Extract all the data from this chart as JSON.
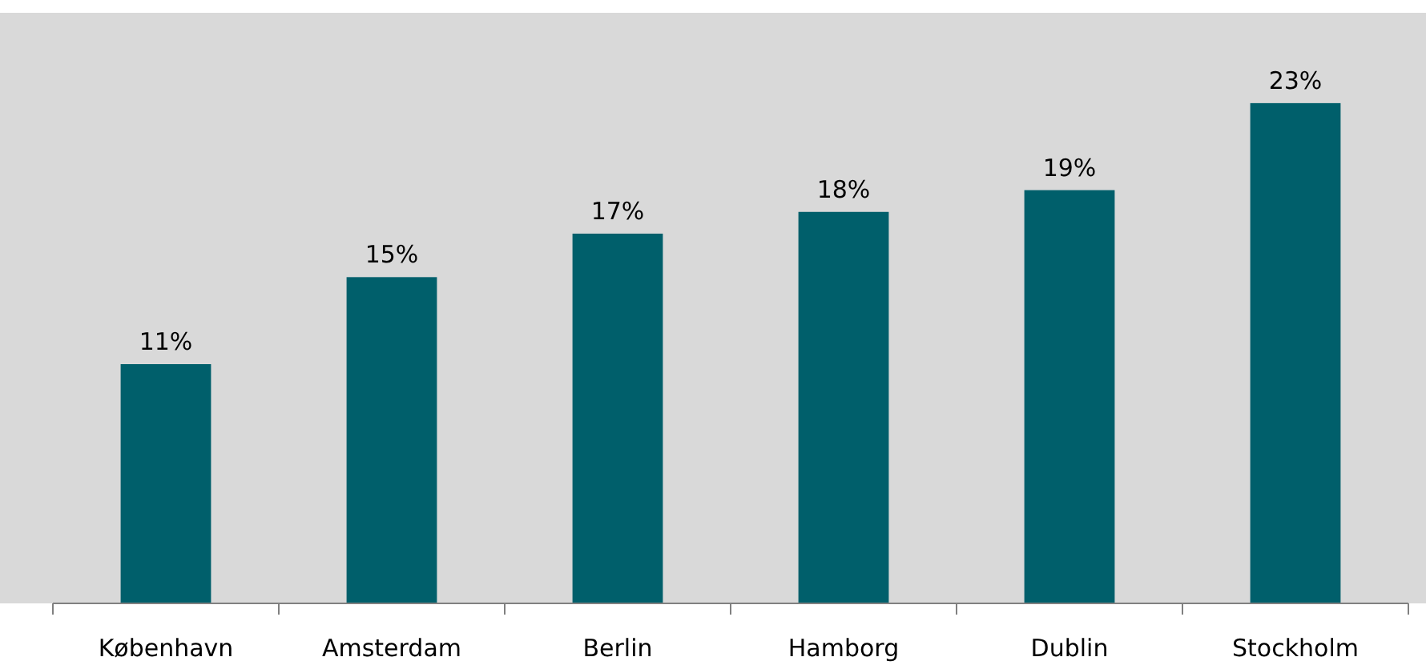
{
  "chart_data": {
    "type": "bar",
    "categories": [
      "København",
      "Amsterdam",
      "Berlin",
      "Hamborg",
      "Dublin",
      "Stockholm"
    ],
    "values": [
      11,
      15,
      17,
      18,
      19,
      23
    ],
    "color": "#005f6b",
    "value_labels": [
      "11%",
      "15%",
      "17%",
      "18%",
      "19%",
      "23%"
    ],
    "tick_labels": "x"
  }
}
